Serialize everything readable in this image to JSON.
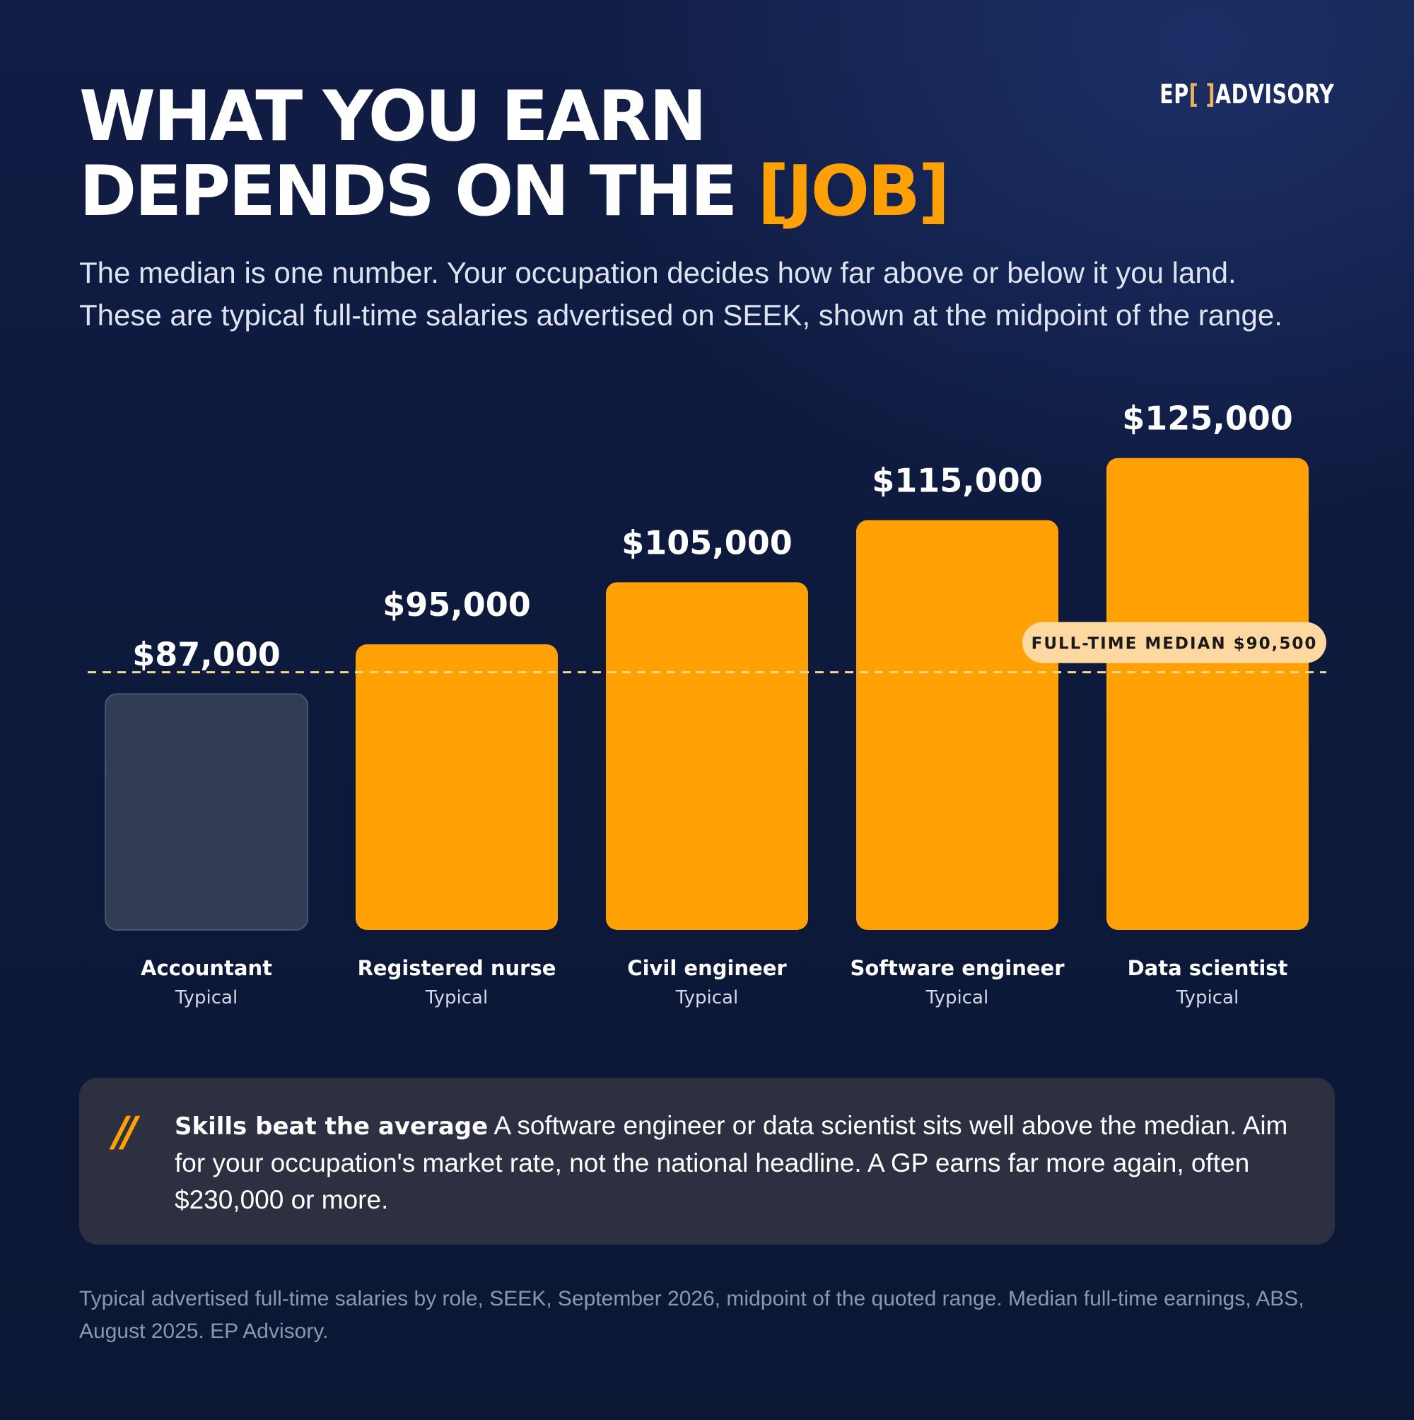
{
  "brand": {
    "prefix": "EP",
    "bracket_open": "[",
    "bracket_close": "]",
    "name": "ADVISORY"
  },
  "title": {
    "line1": "WHAT YOU EARN",
    "line2": "DEPENDS ON THE",
    "accent": "[JOB]"
  },
  "subtitle": "The median is one number. Your occupation decides how far above or below it you land. These are typical full-time salaries advertised on SEEK, shown at the midpoint of the range.",
  "chart_data": {
    "type": "bar",
    "categories": [
      "Accountant",
      "Registered nurse",
      "Civil engineer",
      "Software engineer",
      "Data scientist"
    ],
    "sublabels": [
      "Typical",
      "Typical",
      "Typical",
      "Typical",
      "Typical"
    ],
    "values": [
      87000,
      95000,
      105000,
      115000,
      125000
    ],
    "value_labels": [
      "$87,000",
      "$95,000",
      "$105,000",
      "$115,000",
      "$125,000"
    ],
    "highlight": [
      false,
      true,
      true,
      true,
      true
    ],
    "reference_line": {
      "value": 90500,
      "label": "FULL-TIME MEDIAN $90,500"
    },
    "colors": {
      "bar": "#ffa004",
      "bar_below_median": "#323c54",
      "reference_line": "#f5d88c",
      "reference_badge": "#fdd8a0"
    },
    "grid": false,
    "legend": "none"
  },
  "callout": {
    "mark": "//",
    "heading": "Skills beat the average",
    "text": " A software engineer or data scientist sits well above the median. Aim for your occupation's market rate, not the national headline. A GP earns far more again, often $230,000 or more."
  },
  "footnote": "Typical advertised full-time salaries by role, SEEK, September 2026, midpoint of the quoted range. Median full-time earnings, ABS, August 2025. EP Advisory."
}
